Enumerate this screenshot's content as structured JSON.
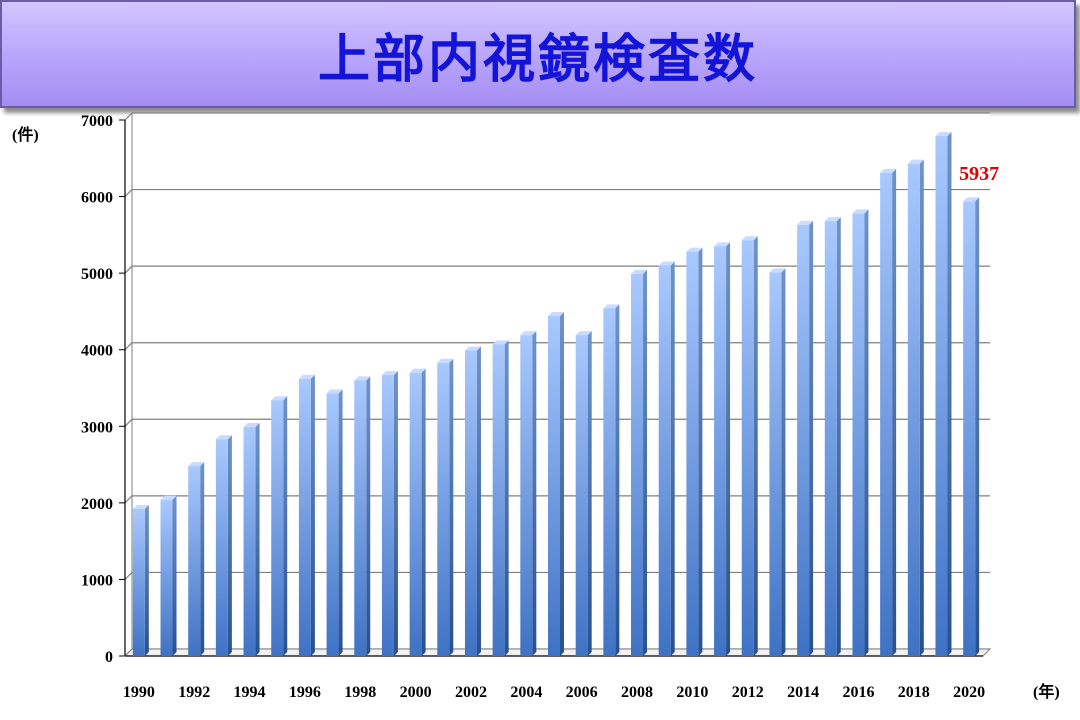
{
  "title": "上部内視鏡検査数",
  "chart_data": {
    "type": "bar",
    "title": "上部内視鏡検査数",
    "ylabel": "(件)",
    "xlabel": "(年)",
    "ylim": [
      0,
      7000
    ],
    "yticks": [
      0,
      1000,
      2000,
      3000,
      4000,
      5000,
      6000,
      7000
    ],
    "grid": true,
    "categories": [
      "1990",
      "1991",
      "1992",
      "1993",
      "1994",
      "1995",
      "1996",
      "1997",
      "1998",
      "1999",
      "2000",
      "2001",
      "2002",
      "2003",
      "2004",
      "2005",
      "2006",
      "2007",
      "2008",
      "2009",
      "2010",
      "2011",
      "2012",
      "2013",
      "2014",
      "2015",
      "2016",
      "2017",
      "2018",
      "2019",
      "2020"
    ],
    "xtick_labels": [
      "1990",
      "1992",
      "1994",
      "1996",
      "1998",
      "2000",
      "2002",
      "2004",
      "2006",
      "2008",
      "2010",
      "2012",
      "2014",
      "2016",
      "2018",
      "2020"
    ],
    "values": [
      1920,
      2040,
      2480,
      2830,
      2990,
      3340,
      3620,
      3430,
      3600,
      3670,
      3700,
      3830,
      3990,
      4070,
      4190,
      4440,
      4190,
      4540,
      4990,
      5100,
      5280,
      5350,
      5430,
      5010,
      5630,
      5680,
      5780,
      6310,
      6430,
      6790,
      5937
    ],
    "data_labels": [
      {
        "category": "2020",
        "text": "5937",
        "color": "#e00000"
      }
    ],
    "bar_color": "#6f9fe8"
  }
}
